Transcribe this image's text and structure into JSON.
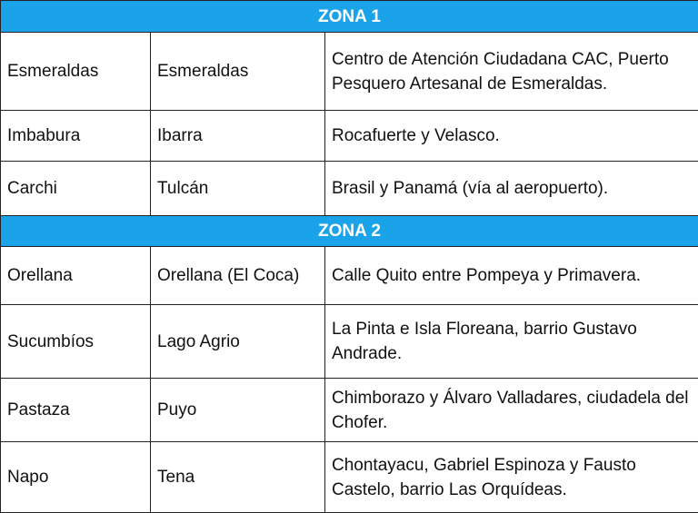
{
  "zones": [
    {
      "title": "ZONA 1",
      "rows": [
        {
          "province": "Esmeraldas",
          "city": "Esmeraldas",
          "address": "Centro de Atención Ciudadana CAC, Puerto Pesquero Artesanal de Esmeraldas."
        },
        {
          "province": "Imbabura",
          "city": "Ibarra",
          "address": "Rocafuerte y Velasco."
        },
        {
          "province": "Carchi",
          "city": "Tulcán",
          "address": "Brasil y Panamá (vía al aeropuerto)."
        }
      ]
    },
    {
      "title": "ZONA 2",
      "rows": [
        {
          "province": "Orellana",
          "city": "Orellana (El Coca)",
          "address": "Calle Quito entre Pompeya y Primavera."
        },
        {
          "province": "Sucumbíos",
          "city": "Lago Agrio",
          "address": "La Pinta e Isla Floreana, barrio Gustavo Andrade."
        },
        {
          "province": "Pastaza",
          "city": "Puyo",
          "address": "Chimborazo y Álvaro Valladares, ciudadela del Chofer."
        },
        {
          "province": "Napo",
          "city": "Tena",
          "address": "Chontayacu, Gabriel Espinoza y Fausto Castelo, barrio Las Orquídeas."
        }
      ]
    }
  ],
  "colors": {
    "zone_header": "#1aa3e8"
  }
}
